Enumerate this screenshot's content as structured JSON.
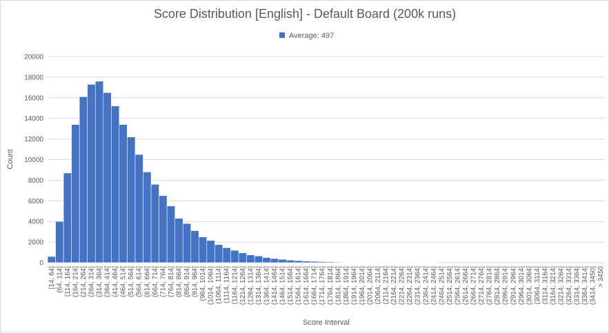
{
  "chart_data": {
    "type": "bar",
    "title": "Score Distribution [English] - Default Board (200k runs)",
    "xlabel": "Score Interval",
    "ylabel": "Count",
    "ylim": [
      0,
      20000
    ],
    "ytick_labels": [
      "0",
      "2000",
      "4000",
      "6000",
      "8000",
      "10000",
      "12000",
      "14000",
      "16000",
      "18000",
      "20000"
    ],
    "grid": true,
    "legend_position": "top",
    "series": [
      {
        "name": "Average: 497",
        "color": "#4472c4"
      }
    ],
    "categories": [
      "[14, 64]",
      "(64, 114]",
      "(114, 164]",
      "(164, 214]",
      "(214, 264]",
      "(264, 314]",
      "(314, 364]",
      "(364, 414]",
      "(414, 464]",
      "(464, 514]",
      "(514, 564]",
      "(564, 614]",
      "(614, 664]",
      "(664, 714]",
      "(714, 764]",
      "(764, 814]",
      "(814, 864]",
      "(864, 914]",
      "(914, 964]",
      "(964, 1014]",
      "(1014, 1064]",
      "(1064, 1114]",
      "(1114, 1164]",
      "(1164, 1214]",
      "(1214, 1264]",
      "(1264, 1314]",
      "(1314, 1364]",
      "(1364, 1414]",
      "(1414, 1464]",
      "(1464, 1514]",
      "(1514, 1564]",
      "(1564, 1614]",
      "(1614, 1664]",
      "(1664, 1714]",
      "(1714, 1764]",
      "(1764, 1814]",
      "(1814, 1864]",
      "(1864, 1914]",
      "(1914, 1964]",
      "(1964, 2014]",
      "(2014, 2064]",
      "(2064, 2114]",
      "(2114, 2164]",
      "(2164, 2214]",
      "(2214, 2264]",
      "(2264, 2314]",
      "(2314, 2364]",
      "(2364, 2414]",
      "(2414, 2464]",
      "(2464, 2514]",
      "(2514, 2564]",
      "(2564, 2614]",
      "(2614, 2664]",
      "(2664, 2714]",
      "(2714, 2764]",
      "(2764, 2814]",
      "(2814, 2864]",
      "(2864, 2914]",
      "(2914, 2964]",
      "(2964, 3014]",
      "(3014, 3064]",
      "(3064, 3114]",
      "(3114, 3164]",
      "(3164, 3214]",
      "(3214, 3264]",
      "(3264, 3314]",
      "(3314, 3364]",
      "(3364, 3414]",
      "(3414, 3450]",
      "> 3450"
    ],
    "values": [
      600,
      4000,
      8700,
      13400,
      16100,
      17300,
      17600,
      16500,
      15200,
      13400,
      12200,
      10500,
      8800,
      7600,
      6500,
      5500,
      4300,
      3800,
      3100,
      2500,
      2150,
      1750,
      1450,
      1200,
      950,
      750,
      650,
      500,
      400,
      320,
      250,
      200,
      160,
      130,
      100,
      80,
      55,
      35,
      25,
      15,
      10,
      8,
      5,
      3,
      2,
      2,
      1,
      1,
      1,
      0,
      0,
      0,
      0,
      0,
      0,
      0,
      0,
      0,
      0,
      0,
      0,
      0,
      0,
      0,
      0,
      0,
      0,
      0,
      0,
      0
    ]
  }
}
